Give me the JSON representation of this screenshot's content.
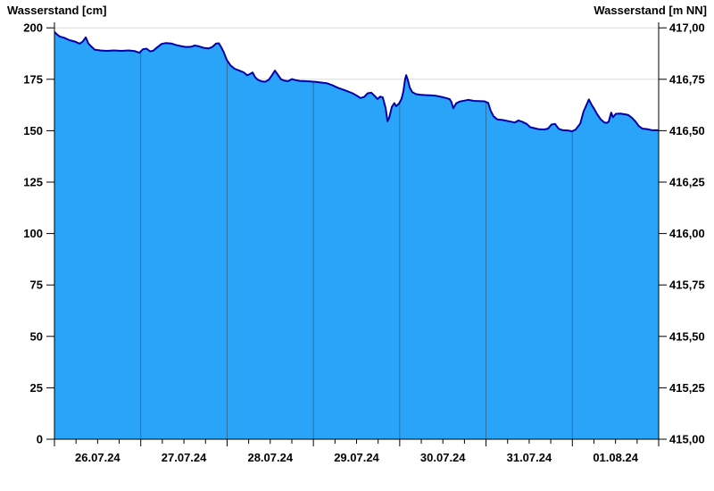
{
  "titles": {
    "left": "Wasserstand [cm]",
    "right": "Wasserstand [m NN]"
  },
  "chart_data": {
    "type": "area",
    "title": "",
    "x_unit": "hours since 26.07.24 00:00",
    "x_range": [
      0,
      168
    ],
    "day_interval_hours": 24,
    "minor_tick_hours": 6,
    "day_labels": [
      "26.07.24",
      "27.07.24",
      "28.07.24",
      "29.07.24",
      "30.07.24",
      "31.07.24",
      "01.08.24"
    ],
    "left_axis": {
      "label": "Wasserstand [cm]",
      "range": [
        0,
        200
      ],
      "tick_step": 25,
      "ticks": [
        0,
        25,
        50,
        75,
        100,
        125,
        150,
        175,
        200
      ]
    },
    "right_axis": {
      "label": "Wasserstand [m NN]",
      "range": [
        415.0,
        417.0
      ],
      "tick_step": 0.25,
      "tick_labels_top_to_bottom": [
        "417,00",
        "416,75",
        "416,50",
        "416,25",
        "416,00",
        "415,75",
        "415,50",
        "415,25",
        "415,00"
      ]
    },
    "grid": {
      "horizontal": true,
      "vertical_day_lines_inside_area": true
    },
    "legend": "none",
    "colors": {
      "area_fill": "#2AA4F8",
      "line": "#0000A8",
      "h_gridline": "#DBDBDB",
      "day_line": "#2E6E9E",
      "axis": "#000000"
    },
    "series": [
      {
        "name": "Wasserstand",
        "points": [
          [
            0,
            198
          ],
          [
            0.7,
            196.8
          ],
          [
            1.5,
            195.8
          ],
          [
            2.7,
            195.2
          ],
          [
            4.2,
            194
          ],
          [
            5.7,
            193.3
          ],
          [
            7,
            192.3
          ],
          [
            7.9,
            193.4
          ],
          [
            8.7,
            195.4
          ],
          [
            9.4,
            192.5
          ],
          [
            10.2,
            191
          ],
          [
            11.2,
            189.4
          ],
          [
            12.7,
            189
          ],
          [
            14.6,
            188.8
          ],
          [
            16.6,
            189
          ],
          [
            18.6,
            188.8
          ],
          [
            20.6,
            189
          ],
          [
            22.3,
            188.7
          ],
          [
            23.6,
            187.9
          ],
          [
            24.6,
            189.6
          ],
          [
            25.6,
            189.9
          ],
          [
            26.6,
            188.6
          ],
          [
            27.5,
            188.9
          ],
          [
            28.5,
            190.4
          ],
          [
            29.8,
            192.2
          ],
          [
            31,
            192.6
          ],
          [
            32.5,
            192.4
          ],
          [
            33.7,
            191.7
          ],
          [
            35,
            191.2
          ],
          [
            36.5,
            190.7
          ],
          [
            38,
            190.8
          ],
          [
            39,
            191.4
          ],
          [
            40.2,
            191
          ],
          [
            41.4,
            190.3
          ],
          [
            42.9,
            190
          ],
          [
            43.9,
            190.7
          ],
          [
            44.9,
            192.3
          ],
          [
            45.7,
            192.5
          ],
          [
            46.4,
            190.5
          ],
          [
            47.1,
            188
          ],
          [
            47.9,
            184.5
          ],
          [
            48.9,
            181.8
          ],
          [
            50.1,
            180.1
          ],
          [
            51.4,
            179.2
          ],
          [
            52.6,
            178.4
          ],
          [
            53.6,
            176.9
          ],
          [
            54.3,
            177.5
          ],
          [
            55.1,
            178.3
          ],
          [
            55.8,
            176
          ],
          [
            56.6,
            174.7
          ],
          [
            57.6,
            174
          ],
          [
            58.6,
            173.8
          ],
          [
            59.6,
            174.8
          ],
          [
            60.5,
            177
          ],
          [
            61.3,
            179.2
          ],
          [
            62,
            177.5
          ],
          [
            63,
            175
          ],
          [
            64,
            174.3
          ],
          [
            65,
            174.1
          ],
          [
            66,
            175.1
          ],
          [
            67,
            174.6
          ],
          [
            68.2,
            174.2
          ],
          [
            69.7,
            174.1
          ],
          [
            71.2,
            173.9
          ],
          [
            72.7,
            173.7
          ],
          [
            74.2,
            173.4
          ],
          [
            75.7,
            173.1
          ],
          [
            77.2,
            172.2
          ],
          [
            78.7,
            170.9
          ],
          [
            80.2,
            170
          ],
          [
            81.6,
            169.1
          ],
          [
            82.9,
            168.2
          ],
          [
            84.1,
            167
          ],
          [
            85.1,
            165.9
          ],
          [
            86.1,
            166.4
          ],
          [
            87.1,
            168.2
          ],
          [
            88.1,
            168.5
          ],
          [
            89.1,
            166.8
          ],
          [
            89.8,
            165.4
          ],
          [
            90.6,
            166.6
          ],
          [
            91.3,
            166.2
          ],
          [
            92.1,
            161
          ],
          [
            92.6,
            154.6
          ],
          [
            93.1,
            156.5
          ],
          [
            93.8,
            161.5
          ],
          [
            94.5,
            163.4
          ],
          [
            95,
            161.9
          ],
          [
            95.8,
            163.2
          ],
          [
            96.5,
            165.5
          ],
          [
            97,
            169
          ],
          [
            97.5,
            175
          ],
          [
            97.8,
            177
          ],
          [
            98.3,
            174.5
          ],
          [
            98.8,
            171
          ],
          [
            99.5,
            168.7
          ],
          [
            100.5,
            167.8
          ],
          [
            101.7,
            167.5
          ],
          [
            103,
            167.3
          ],
          [
            104.5,
            167.2
          ],
          [
            106,
            167
          ],
          [
            107.4,
            166.5
          ],
          [
            108.9,
            165.9
          ],
          [
            109.9,
            165.3
          ],
          [
            110.4,
            163.8
          ],
          [
            110.9,
            160.9
          ],
          [
            111.7,
            163.3
          ],
          [
            112.7,
            164.2
          ],
          [
            113.9,
            164.6
          ],
          [
            115.1,
            165
          ],
          [
            116.6,
            164.5
          ],
          [
            118.1,
            164.4
          ],
          [
            119.6,
            164.3
          ],
          [
            120.6,
            163.5
          ],
          [
            121.3,
            159.7
          ],
          [
            122.1,
            157
          ],
          [
            123.1,
            155.5
          ],
          [
            124.6,
            155.2
          ],
          [
            126.3,
            154.6
          ],
          [
            128,
            154
          ],
          [
            129,
            155
          ],
          [
            130,
            154.4
          ],
          [
            131.3,
            153.3
          ],
          [
            132.3,
            151.7
          ],
          [
            133.5,
            151.2
          ],
          [
            134.7,
            150.7
          ],
          [
            136.2,
            150.6
          ],
          [
            137.2,
            151
          ],
          [
            138.2,
            153
          ],
          [
            139.2,
            153.3
          ],
          [
            140.2,
            150.9
          ],
          [
            141.4,
            150.2
          ],
          [
            142.9,
            150.1
          ],
          [
            143.9,
            149.7
          ],
          [
            144.9,
            150.5
          ],
          [
            146.2,
            153.5
          ],
          [
            147.1,
            159.3
          ],
          [
            148.1,
            163.2
          ],
          [
            148.6,
            165.2
          ],
          [
            149.4,
            162.5
          ],
          [
            150.1,
            160.5
          ],
          [
            150.9,
            158
          ],
          [
            151.9,
            155.5
          ],
          [
            152.9,
            154
          ],
          [
            153.6,
            153.8
          ],
          [
            154.1,
            154.4
          ],
          [
            154.8,
            158.8
          ],
          [
            155.3,
            156.5
          ],
          [
            156.1,
            158.2
          ],
          [
            157.3,
            158.3
          ],
          [
            158.6,
            158
          ],
          [
            159.6,
            157.6
          ],
          [
            160.6,
            156.2
          ],
          [
            161.6,
            154.4
          ],
          [
            162.5,
            152.2
          ],
          [
            163.5,
            151
          ],
          [
            164.8,
            150.8
          ],
          [
            166,
            150.3
          ],
          [
            167.2,
            150.2
          ],
          [
            168,
            150.2
          ]
        ]
      }
    ]
  }
}
